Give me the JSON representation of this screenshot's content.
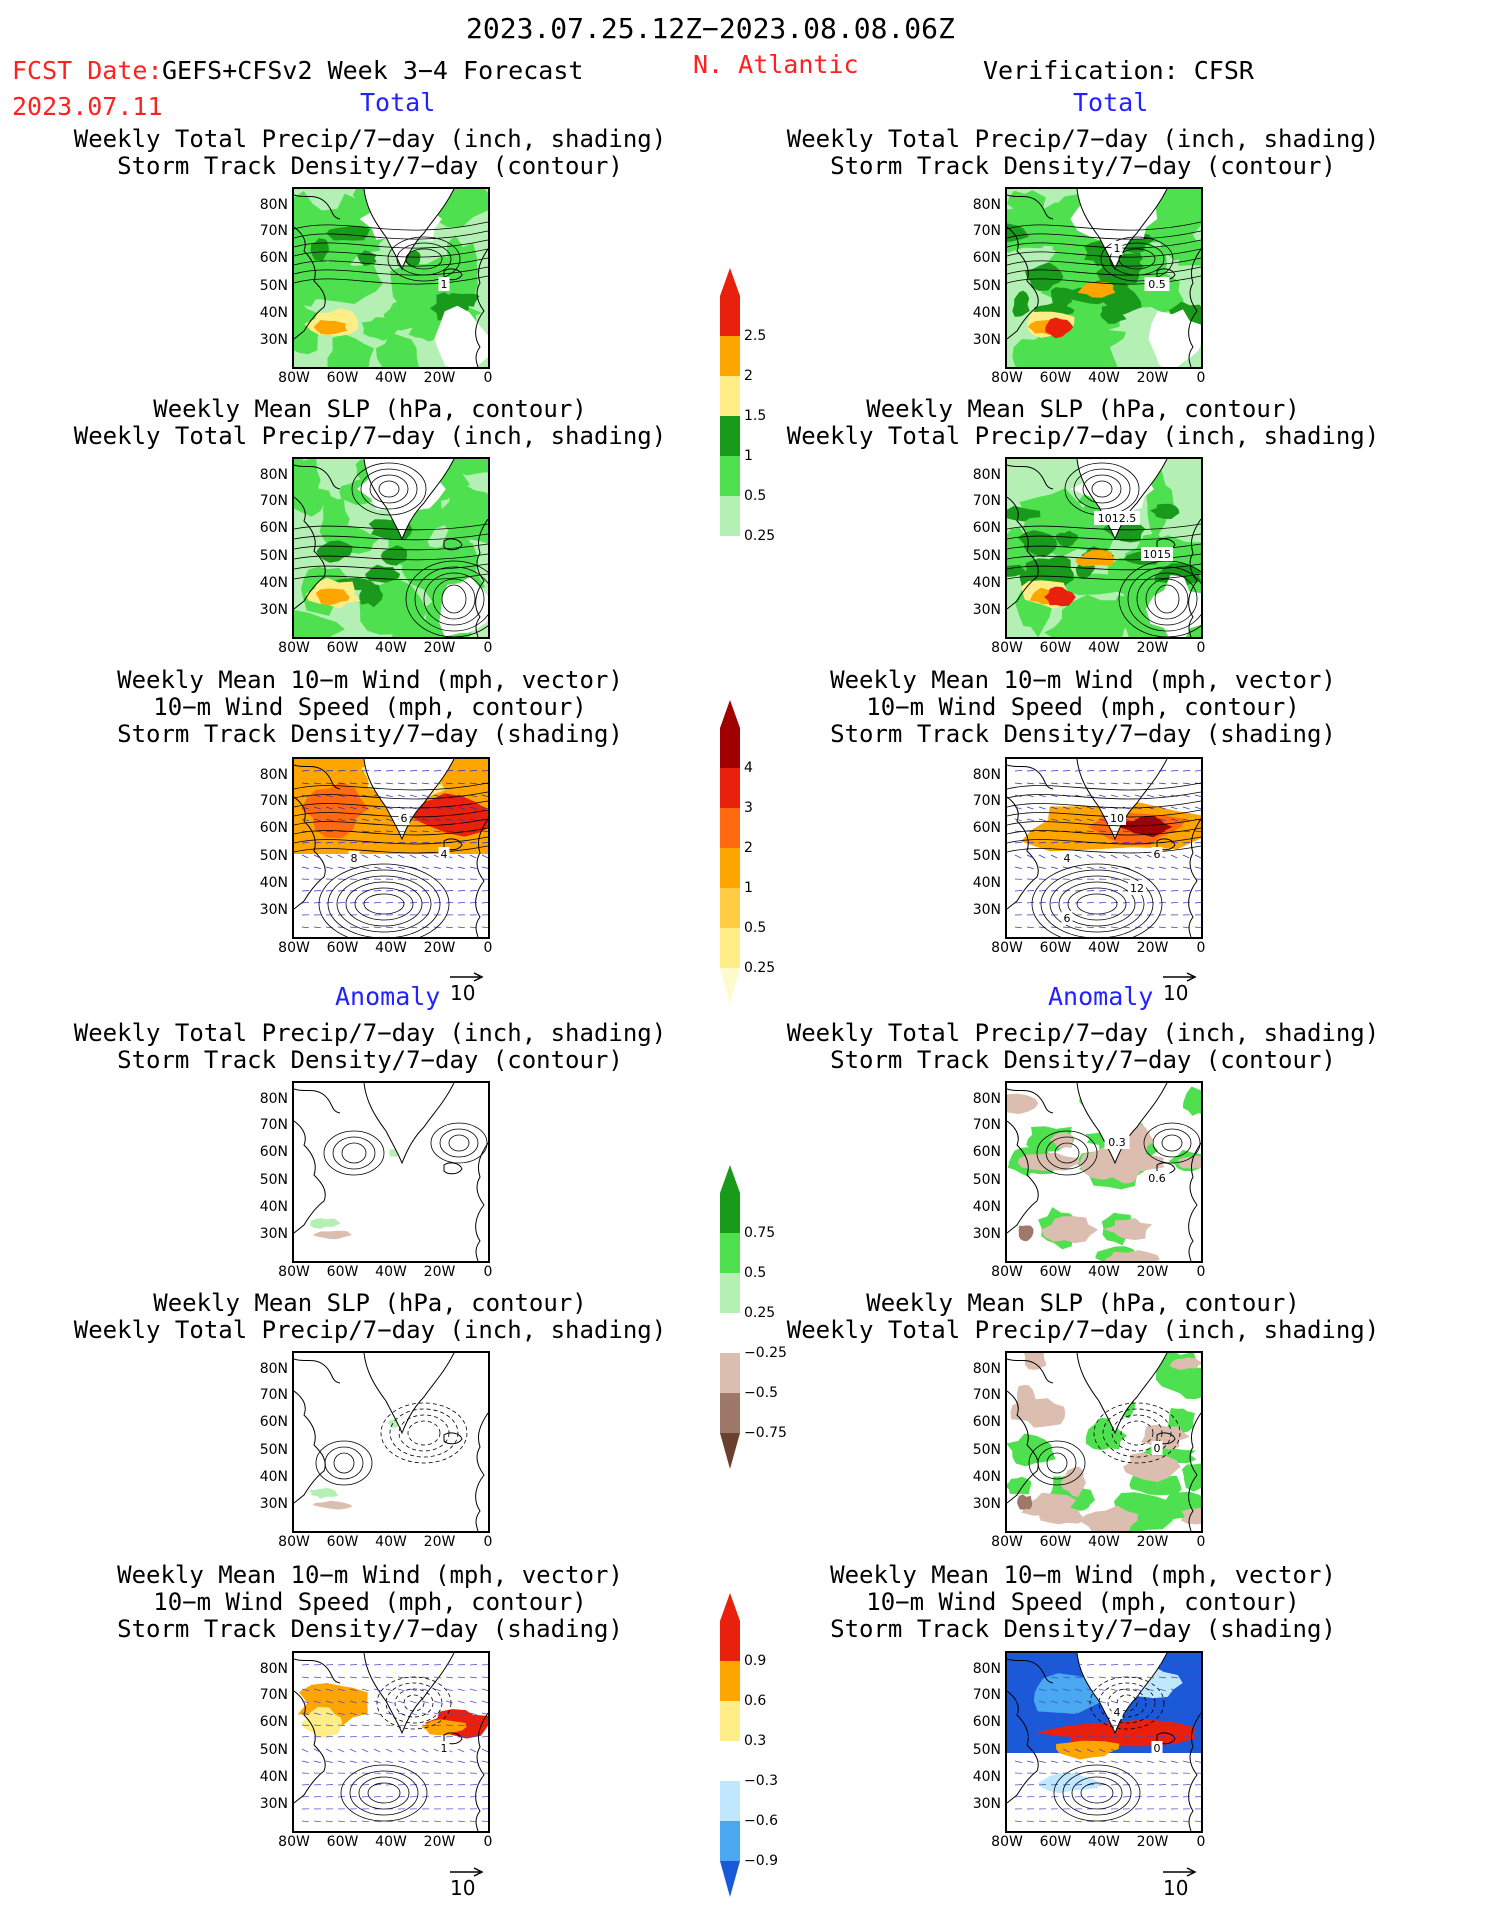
{
  "header": {
    "date_range": "2023.07.25.12Z−2023.08.08.06Z",
    "fcst_label": "FCST Date:",
    "fcst_model": "GEFS+CFSv2 Week 3−4 Forecast",
    "fcst_date": "2023.07.11",
    "region": "N. Atlantic",
    "verification": "Verification: CFSR",
    "total_left": "Total",
    "total_right": "Total",
    "anomaly_left": "Anomaly",
    "anomaly_right": "Anomaly"
  },
  "panel_titles": {
    "precip_track": [
      "Weekly Total Precip/7−day (inch, shading)",
      "Storm Track Density/7−day (contour)"
    ],
    "slp_precip": [
      "Weekly Mean SLP (hPa, contour)",
      "Weekly Total Precip/7−day (inch, shading)"
    ],
    "wind_track": [
      "Weekly Mean 10−m Wind (mph, vector)",
      "10−m Wind Speed (mph, contour)",
      "Storm Track Density/7−day (shading)"
    ]
  },
  "axes": {
    "lat_labels": [
      "80N",
      "70N",
      "60N",
      "50N",
      "40N",
      "30N"
    ],
    "lon_labels": [
      "80W",
      "60W",
      "40W",
      "20W",
      "0"
    ]
  },
  "vector_ref": "10",
  "colors": {
    "land_line": "#000000",
    "green_light": "#b4f0b4",
    "green_mid": "#4ee04e",
    "green_dark": "#1a9a1a",
    "yellow": "#ffee88",
    "orange": "#ffa500",
    "red": "#e8200c",
    "darkred": "#a00000",
    "brown_light": "#dcbeb0",
    "brown_mid": "#a0786a",
    "brown_dark": "#6a4030",
    "blue_light": "#bfe8ff",
    "blue_mid": "#4aa8f0",
    "blue_dark": "#1a5ad8"
  },
  "colorbars": {
    "total_precip": {
      "labels": [
        "2.5",
        "2",
        "1.5",
        "1",
        "0.5",
        "0.25"
      ],
      "colors": [
        "#e8200c",
        "#ffa500",
        "#ffee88",
        "#1a9a1a",
        "#4ee04e",
        "#b4f0b4"
      ]
    },
    "total_track": {
      "labels": [
        "4",
        "3",
        "2",
        "1",
        "0.5",
        "0.25"
      ],
      "colors": [
        "#a00000",
        "#e8200c",
        "#ff6a10",
        "#ffa500",
        "#ffcc44",
        "#ffee88",
        "#fffacc"
      ]
    },
    "anom_precip": {
      "labels": [
        "0.75",
        "0.5",
        "0.25",
        "−0.25",
        "−0.5",
        "−0.75"
      ],
      "colors": [
        "#1a9a1a",
        "#4ee04e",
        "#b4f0b4",
        "#ffffff",
        "#dcbeb0",
        "#a0786a",
        "#6a4030"
      ]
    },
    "anom_track": {
      "labels": [
        "0.9",
        "0.6",
        "0.3",
        "−0.3",
        "−0.6",
        "−0.9"
      ],
      "colors": [
        "#e8200c",
        "#ffa500",
        "#ffee88",
        "#ffffff",
        "#bfe8ff",
        "#4aa8f0",
        "#1a5ad8"
      ]
    }
  },
  "contour_labels": {
    "fc_total_precip_track": [
      "1"
    ],
    "ob_total_precip_track": [
      "0.5",
      "1"
    ],
    "ob_total_slp": [
      "1015",
      "1012.5"
    ],
    "fc_total_wind": [
      "4",
      "6",
      "8"
    ],
    "ob_total_wind": [
      "6",
      "10",
      "4",
      "12",
      "6"
    ],
    "ob_anom_precip_track": [
      "0.6",
      "0.3"
    ],
    "ob_anom_slp": [
      "0"
    ],
    "fc_anom_wind": [
      "1"
    ],
    "ob_anom_wind": [
      "0",
      "4"
    ]
  },
  "chart_data": [
    {
      "type": "heatmap",
      "title": "Weekly Total Precip/7−day (inch, shading) / Storm Track Density/7−day (contour)",
      "section": "Total",
      "source": "GEFS+CFSv2 Week 3−4 Forecast",
      "xlabel": "",
      "ylabel": "",
      "x": [
        "80W",
        "60W",
        "40W",
        "20W",
        "0"
      ],
      "y": [
        "80N",
        "70N",
        "60N",
        "50N",
        "40N",
        "30N"
      ],
      "levels": [
        0.25,
        0.5,
        1,
        1.5,
        2,
        2.5
      ],
      "contour_labels": [
        "1"
      ]
    },
    {
      "type": "heatmap",
      "title": "Weekly Total Precip/7−day (inch, shading) / Storm Track Density/7−day (contour)",
      "section": "Total",
      "source": "CFSR",
      "xlabel": "",
      "ylabel": "",
      "x": [
        "80W",
        "60W",
        "40W",
        "20W",
        "0"
      ],
      "y": [
        "80N",
        "70N",
        "60N",
        "50N",
        "40N",
        "30N"
      ],
      "levels": [
        0.25,
        0.5,
        1,
        1.5,
        2,
        2.5
      ],
      "contour_labels": [
        "0.5",
        "1"
      ]
    },
    {
      "type": "heatmap",
      "title": "Weekly Mean SLP (hPa, contour) / Weekly Total Precip/7−day (inch, shading)",
      "section": "Total",
      "source": "GEFS+CFSv2 Week 3−4 Forecast",
      "xlabel": "",
      "ylabel": "",
      "x": [
        "80W",
        "60W",
        "40W",
        "20W",
        "0"
      ],
      "y": [
        "80N",
        "70N",
        "60N",
        "50N",
        "40N",
        "30N"
      ],
      "levels": [
        0.25,
        0.5,
        1,
        1.5,
        2,
        2.5
      ],
      "contour_labels": []
    },
    {
      "type": "heatmap",
      "title": "Weekly Mean SLP (hPa, contour) / Weekly Total Precip/7−day (inch, shading)",
      "section": "Total",
      "source": "CFSR",
      "xlabel": "",
      "ylabel": "",
      "x": [
        "80W",
        "60W",
        "40W",
        "20W",
        "0"
      ],
      "y": [
        "80N",
        "70N",
        "60N",
        "50N",
        "40N",
        "30N"
      ],
      "levels": [
        0.25,
        0.5,
        1,
        1.5,
        2,
        2.5
      ],
      "contour_labels": [
        "1015",
        "1012.5"
      ]
    },
    {
      "type": "heatmap",
      "title": "Weekly Mean 10−m Wind (mph, vector) / 10−m Wind Speed (mph, contour) / Storm Track Density/7−day (shading)",
      "section": "Total",
      "source": "GEFS+CFSv2 Week 3−4 Forecast",
      "xlabel": "",
      "ylabel": "",
      "x": [
        "80W",
        "60W",
        "40W",
        "20W",
        "0"
      ],
      "y": [
        "80N",
        "70N",
        "60N",
        "50N",
        "40N",
        "30N"
      ],
      "levels": [
        0.25,
        0.5,
        1,
        2,
        3,
        4
      ],
      "contour_labels": [
        "4",
        "6",
        "8"
      ],
      "vector_ref": 10
    },
    {
      "type": "heatmap",
      "title": "Weekly Mean 10−m Wind (mph, vector) / 10−m Wind Speed (mph, contour) / Storm Track Density/7−day (shading)",
      "section": "Total",
      "source": "CFSR",
      "xlabel": "",
      "ylabel": "",
      "x": [
        "80W",
        "60W",
        "40W",
        "20W",
        "0"
      ],
      "y": [
        "80N",
        "70N",
        "60N",
        "50N",
        "40N",
        "30N"
      ],
      "levels": [
        0.25,
        0.5,
        1,
        2,
        3,
        4
      ],
      "contour_labels": [
        "6",
        "10",
        "4",
        "12",
        "6"
      ],
      "vector_ref": 10
    },
    {
      "type": "heatmap",
      "title": "Weekly Total Precip/7−day (inch, shading) / Storm Track Density/7−day (contour)",
      "section": "Anomaly",
      "source": "GEFS+CFSv2 Week 3−4 Forecast",
      "xlabel": "",
      "ylabel": "",
      "x": [
        "80W",
        "60W",
        "40W",
        "20W",
        "0"
      ],
      "y": [
        "80N",
        "70N",
        "60N",
        "50N",
        "40N",
        "30N"
      ],
      "levels": [
        -0.75,
        -0.5,
        -0.25,
        0.25,
        0.5,
        0.75
      ],
      "contour_labels": []
    },
    {
      "type": "heatmap",
      "title": "Weekly Total Precip/7−day (inch, shading) / Storm Track Density/7−day (contour)",
      "section": "Anomaly",
      "source": "CFSR",
      "xlabel": "",
      "ylabel": "",
      "x": [
        "80W",
        "60W",
        "40W",
        "20W",
        "0"
      ],
      "y": [
        "80N",
        "70N",
        "60N",
        "50N",
        "40N",
        "30N"
      ],
      "levels": [
        -0.75,
        -0.5,
        -0.25,
        0.25,
        0.5,
        0.75
      ],
      "contour_labels": [
        "0.6",
        "0.3"
      ]
    },
    {
      "type": "heatmap",
      "title": "Weekly Mean SLP (hPa, contour) / Weekly Total Precip/7−day (inch, shading)",
      "section": "Anomaly",
      "source": "GEFS+CFSv2 Week 3−4 Forecast",
      "xlabel": "",
      "ylabel": "",
      "x": [
        "80W",
        "60W",
        "40W",
        "20W",
        "0"
      ],
      "y": [
        "80N",
        "70N",
        "60N",
        "50N",
        "40N",
        "30N"
      ],
      "levels": [
        -0.75,
        -0.5,
        -0.25,
        0.25,
        0.5,
        0.75
      ],
      "contour_labels": []
    },
    {
      "type": "heatmap",
      "title": "Weekly Mean SLP (hPa, contour) / Weekly Total Precip/7−day (inch, shading)",
      "section": "Anomaly",
      "source": "CFSR",
      "xlabel": "",
      "ylabel": "",
      "x": [
        "80W",
        "60W",
        "40W",
        "20W",
        "0"
      ],
      "y": [
        "80N",
        "70N",
        "60N",
        "50N",
        "40N",
        "30N"
      ],
      "levels": [
        -0.75,
        -0.5,
        -0.25,
        0.25,
        0.5,
        0.75
      ],
      "contour_labels": [
        "0"
      ]
    },
    {
      "type": "heatmap",
      "title": "Weekly Mean 10−m Wind (mph, vector) / 10−m Wind Speed (mph, contour) / Storm Track Density/7−day (shading)",
      "section": "Anomaly",
      "source": "GEFS+CFSv2 Week 3−4 Forecast",
      "xlabel": "",
      "ylabel": "",
      "x": [
        "80W",
        "60W",
        "40W",
        "20W",
        "0"
      ],
      "y": [
        "80N",
        "70N",
        "60N",
        "50N",
        "40N",
        "30N"
      ],
      "levels": [
        -0.9,
        -0.6,
        -0.3,
        0.3,
        0.6,
        0.9
      ],
      "contour_labels": [
        "1"
      ],
      "vector_ref": 10
    },
    {
      "type": "heatmap",
      "title": "Weekly Mean 10−m Wind (mph, vector) / 10−m Wind Speed (mph, contour) / Storm Track Density/7−day (shading)",
      "section": "Anomaly",
      "source": "CFSR",
      "xlabel": "",
      "ylabel": "",
      "x": [
        "80W",
        "60W",
        "40W",
        "20W",
        "0"
      ],
      "y": [
        "80N",
        "70N",
        "60N",
        "50N",
        "40N",
        "30N"
      ],
      "levels": [
        -0.9,
        -0.6,
        -0.3,
        0.3,
        0.6,
        0.9
      ],
      "contour_labels": [
        "0",
        "4"
      ],
      "vector_ref": 10
    }
  ]
}
